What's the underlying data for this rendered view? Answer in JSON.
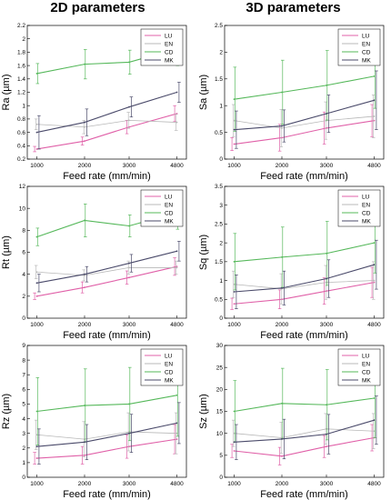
{
  "header": {
    "left_title": "2D parameters",
    "right_title": "3D parameters"
  },
  "colors": {
    "LU": "#e060a8",
    "EN": "#b8b8b8",
    "CD": "#55b85a",
    "MK": "#4a4a6a"
  },
  "chart_data": [
    {
      "id": "ra",
      "type": "line",
      "xlabel": "Feed rate (mm/min)",
      "ylabel": "Ra (µm)",
      "x": [
        1000,
        2000,
        3000,
        4800
      ],
      "xticks": [
        "1000",
        "2000",
        "3000",
        "4800"
      ],
      "ylim": [
        0.2,
        2.2
      ],
      "yticks": [
        "0.2",
        "0.4",
        "0.6",
        "0.8",
        "1",
        "1.2",
        "1.4",
        "1.6",
        "1.8",
        "2",
        "2.2"
      ],
      "legend": "top-right",
      "series": [
        {
          "name": "LU",
          "values": [
            0.35,
            0.47,
            0.68,
            0.88
          ],
          "err": [
            0.04,
            0.06,
            0.1,
            0.12
          ]
        },
        {
          "name": "EN",
          "values": [
            0.72,
            0.68,
            0.78,
            0.75
          ],
          "err": [
            0.08,
            0.1,
            0.12,
            0.12
          ]
        },
        {
          "name": "CD",
          "values": [
            1.48,
            1.62,
            1.65,
            1.85
          ],
          "err": [
            0.15,
            0.22,
            0.18,
            0.25
          ]
        },
        {
          "name": "MK",
          "values": [
            0.6,
            0.75,
            0.98,
            1.2
          ],
          "err": [
            0.25,
            0.2,
            0.15,
            0.15
          ]
        }
      ]
    },
    {
      "id": "sa",
      "type": "line",
      "xlabel": "Feed rate (mm/min)",
      "ylabel": "Sa (µm)",
      "x": [
        1000,
        2000,
        3000,
        4800
      ],
      "xticks": [
        "1000",
        "2000",
        "3000",
        "4800"
      ],
      "ylim": [
        0,
        2.5
      ],
      "yticks": [
        "0",
        "0.5",
        "1",
        "1.5",
        "2",
        "2.5"
      ],
      "legend": "top-right",
      "series": [
        {
          "name": "LU",
          "values": [
            0.28,
            0.4,
            0.58,
            0.72
          ],
          "err": [
            0.12,
            0.25,
            0.3,
            0.3
          ]
        },
        {
          "name": "EN",
          "values": [
            0.72,
            0.58,
            0.72,
            0.8
          ],
          "err": [
            0.3,
            0.35,
            0.35,
            0.4
          ]
        },
        {
          "name": "CD",
          "values": [
            1.12,
            1.25,
            1.38,
            1.55
          ],
          "err": [
            0.6,
            0.6,
            0.65,
            0.6
          ]
        },
        {
          "name": "MK",
          "values": [
            0.55,
            0.62,
            0.85,
            1.1
          ],
          "err": [
            0.35,
            0.3,
            0.35,
            0.55
          ]
        }
      ]
    },
    {
      "id": "rt",
      "type": "line",
      "xlabel": "Feed rate (mm/min)",
      "ylabel": "Rt (µm)",
      "x": [
        1000,
        2000,
        3000,
        4800
      ],
      "xticks": [
        "1000",
        "2000",
        "3000",
        "4800"
      ],
      "ylim": [
        0,
        12
      ],
      "yticks": [
        "0",
        "2",
        "4",
        "6",
        "8",
        "10",
        "12"
      ],
      "legend": "top-right",
      "series": [
        {
          "name": "LU",
          "values": [
            2.0,
            2.8,
            3.7,
            4.7
          ],
          "err": [
            0.3,
            0.5,
            0.6,
            0.8
          ]
        },
        {
          "name": "EN",
          "values": [
            4.2,
            3.9,
            4.6,
            4.6
          ],
          "err": [
            0.6,
            0.5,
            0.6,
            0.6
          ]
        },
        {
          "name": "CD",
          "values": [
            7.4,
            8.9,
            8.4,
            9.6
          ],
          "err": [
            0.8,
            1.5,
            1.0,
            1.5
          ]
        },
        {
          "name": "MK",
          "values": [
            3.2,
            4.0,
            5.0,
            6.1
          ],
          "err": [
            0.8,
            0.7,
            0.8,
            0.9
          ]
        }
      ]
    },
    {
      "id": "sq",
      "type": "line",
      "xlabel": "Feed rate (mm/min)",
      "ylabel": "Sq (µm)",
      "x": [
        1000,
        2000,
        3000,
        4800
      ],
      "xticks": [
        "1000",
        "2000",
        "3000",
        "4800"
      ],
      "ylim": [
        0,
        3.5
      ],
      "yticks": [
        "0",
        "0.5",
        "1",
        "1.5",
        "2",
        "2.5",
        "3",
        "3.5"
      ],
      "legend": "top-right",
      "series": [
        {
          "name": "LU",
          "values": [
            0.38,
            0.5,
            0.72,
            0.95
          ],
          "err": [
            0.15,
            0.25,
            0.35,
            0.4
          ]
        },
        {
          "name": "EN",
          "values": [
            0.9,
            0.78,
            0.95,
            1.0
          ],
          "err": [
            0.35,
            0.4,
            0.45,
            0.5
          ]
        },
        {
          "name": "CD",
          "values": [
            1.5,
            1.62,
            1.72,
            2.0
          ],
          "err": [
            0.75,
            0.8,
            0.85,
            0.8
          ]
        },
        {
          "name": "MK",
          "values": [
            0.7,
            0.8,
            1.05,
            1.42
          ],
          "err": [
            0.45,
            0.45,
            0.5,
            0.65
          ]
        }
      ]
    },
    {
      "id": "rz",
      "type": "line",
      "xlabel": "Feed rate (mm/min)",
      "ylabel": "Rz (µm)",
      "x": [
        1000,
        2000,
        3000,
        4800
      ],
      "xticks": [
        "1000",
        "2000",
        "3000",
        "4800"
      ],
      "ylim": [
        0,
        9
      ],
      "yticks": [
        "0",
        "1",
        "2",
        "3",
        "4",
        "5",
        "6",
        "7",
        "8",
        "9"
      ],
      "legend": "top-right",
      "series": [
        {
          "name": "LU",
          "values": [
            1.3,
            1.5,
            2.1,
            2.6
          ],
          "err": [
            0.4,
            0.6,
            0.8,
            1.0
          ]
        },
        {
          "name": "EN",
          "values": [
            2.9,
            2.6,
            3.1,
            3.0
          ],
          "err": [
            1.0,
            1.2,
            1.3,
            1.4
          ]
        },
        {
          "name": "CD",
          "values": [
            4.5,
            4.9,
            5.0,
            5.6
          ],
          "err": [
            2.3,
            2.5,
            2.5,
            2.8
          ]
        },
        {
          "name": "MK",
          "values": [
            2.1,
            2.4,
            3.0,
            3.7
          ],
          "err": [
            1.2,
            1.2,
            1.3,
            1.4
          ]
        }
      ]
    },
    {
      "id": "sz",
      "type": "line",
      "xlabel": "Feed rate (mm/min)",
      "ylabel": "Sz (µm)",
      "x": [
        1000,
        2000,
        3000,
        4800
      ],
      "xticks": [
        "1000",
        "2000",
        "3000",
        "4800"
      ],
      "ylim": [
        0,
        30
      ],
      "yticks": [
        "0",
        "5",
        "10",
        "15",
        "20",
        "25",
        "30"
      ],
      "legend": "top-right",
      "series": [
        {
          "name": "LU",
          "values": [
            6.0,
            4.8,
            7.0,
            9.0
          ],
          "err": [
            1.5,
            2.0,
            2.5,
            3.0
          ]
        },
        {
          "name": "EN",
          "values": [
            10.0,
            9.0,
            11.0,
            10.5
          ],
          "err": [
            3.0,
            3.5,
            3.5,
            4.0
          ]
        },
        {
          "name": "CD",
          "values": [
            15.0,
            16.8,
            16.5,
            18.0
          ],
          "err": [
            7.0,
            8.0,
            8.0,
            9.0
          ]
        },
        {
          "name": "MK",
          "values": [
            8.0,
            8.7,
            9.8,
            13.0
          ],
          "err": [
            4.0,
            4.5,
            4.5,
            5.5
          ]
        }
      ]
    }
  ]
}
